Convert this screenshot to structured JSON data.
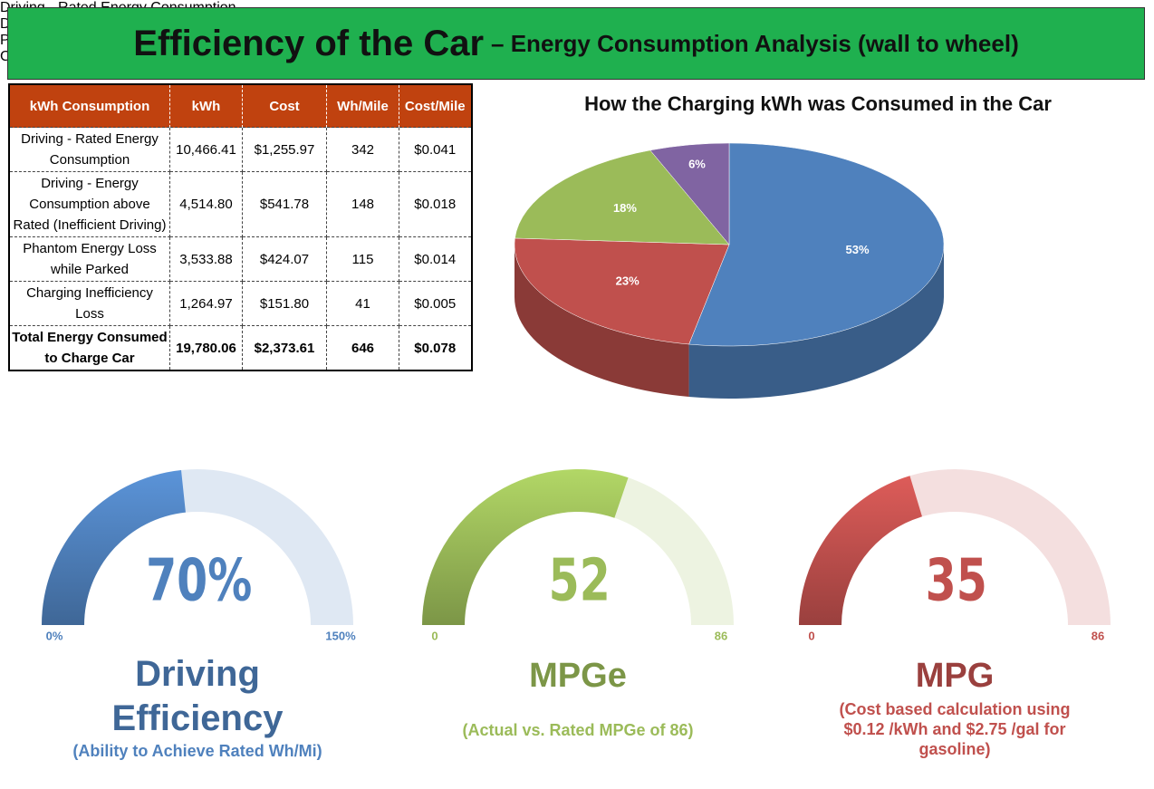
{
  "header": {
    "title": "Efficiency of the Car",
    "subtitle": "– Energy Consumption Analysis (wall to wheel)"
  },
  "table": {
    "columns": [
      "kWh Consumption",
      "kWh",
      "Cost",
      "Wh/Mile",
      "Cost/Mile"
    ],
    "rows": [
      [
        "Driving - Rated Energy Consumption",
        "10,466.41",
        "$1,255.97",
        "342",
        "$0.041"
      ],
      [
        "Driving - Energy Consumption above Rated (Inefficient Driving)",
        "4,514.80",
        "$541.78",
        "148",
        "$0.018"
      ],
      [
        "Phantom Energy Loss while Parked",
        "3,533.88",
        "$424.07",
        "115",
        "$0.014"
      ],
      [
        "Charging Inefficiency Loss",
        "1,264.97",
        "$151.80",
        "41",
        "$0.005"
      ],
      [
        "Total  Energy Consumed to Charge Car",
        "19,780.06",
        "$2,373.61",
        "646",
        "$0.078"
      ]
    ]
  },
  "chart_data": [
    {
      "type": "pie",
      "title": "How the Charging kWh was Consumed in the Car",
      "categories": [
        "Driving - Rated Energy Consumption",
        "Driving - Energy Consumption above Rated (Inefficient Driving)",
        "Phantom Energy Loss while Parked",
        "Charging Inefficiency Loss"
      ],
      "values": [
        53,
        23,
        18,
        6
      ],
      "value_labels": [
        "53%",
        "23%",
        "18%",
        "6%"
      ],
      "colors": [
        "#4f81bd",
        "#c0504d",
        "#9bbb59",
        "#8064a2"
      ],
      "legend": "right"
    },
    {
      "type": "gauge",
      "title": "Driving Efficiency",
      "subtitle": "(Ability to Achieve Rated Wh/Mi)",
      "values": [
        70
      ],
      "value_labels": [
        "70%"
      ],
      "ylim": [
        0,
        150
      ],
      "yticks": [
        {
          "value": 0,
          "label": "0%"
        },
        {
          "value": 150,
          "label": "150%"
        }
      ],
      "color": "#4f81bd"
    },
    {
      "type": "gauge",
      "title": "MPGe",
      "subtitle": "(Actual vs. Rated MPGe of 86)",
      "values": [
        52
      ],
      "ylim": [
        0,
        86
      ],
      "yticks": [
        0,
        86
      ],
      "color": "#9bbb59"
    },
    {
      "type": "gauge",
      "title": "MPG",
      "subtitle": "(Cost based calculation using $0.12 /kWh and $2.75 /gal for gasoline)",
      "values": [
        35
      ],
      "ylim": [
        0,
        86
      ],
      "yticks": [
        0,
        86
      ],
      "color": "#c0504d"
    }
  ]
}
